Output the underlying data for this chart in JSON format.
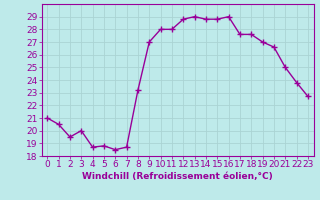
{
  "x": [
    0,
    1,
    2,
    3,
    4,
    5,
    6,
    7,
    8,
    9,
    10,
    11,
    12,
    13,
    14,
    15,
    16,
    17,
    18,
    19,
    20,
    21,
    22,
    23
  ],
  "y": [
    21.0,
    20.5,
    19.5,
    20.0,
    18.7,
    18.8,
    18.5,
    18.7,
    23.2,
    27.0,
    28.0,
    28.0,
    28.8,
    29.0,
    28.8,
    28.8,
    29.0,
    27.6,
    27.6,
    27.0,
    26.6,
    25.0,
    23.8,
    22.7
  ],
  "line_color": "#990099",
  "marker": "+",
  "marker_size": 4,
  "marker_lw": 1.0,
  "bg_color": "#beeaea",
  "grid_color": "#aad4d4",
  "xlabel": "Windchill (Refroidissement éolien,°C)",
  "xlim": [
    -0.5,
    23.5
  ],
  "ylim": [
    18,
    30
  ],
  "yticks": [
    18,
    19,
    20,
    21,
    22,
    23,
    24,
    25,
    26,
    27,
    28,
    29
  ],
  "xticks": [
    0,
    1,
    2,
    3,
    4,
    5,
    6,
    7,
    8,
    9,
    10,
    11,
    12,
    13,
    14,
    15,
    16,
    17,
    18,
    19,
    20,
    21,
    22,
    23
  ],
  "xlabel_fontsize": 6.5,
  "tick_fontsize": 6.5,
  "axis_label_color": "#990099",
  "tick_label_color": "#990099",
  "spine_color": "#990099",
  "line_width": 1.0
}
